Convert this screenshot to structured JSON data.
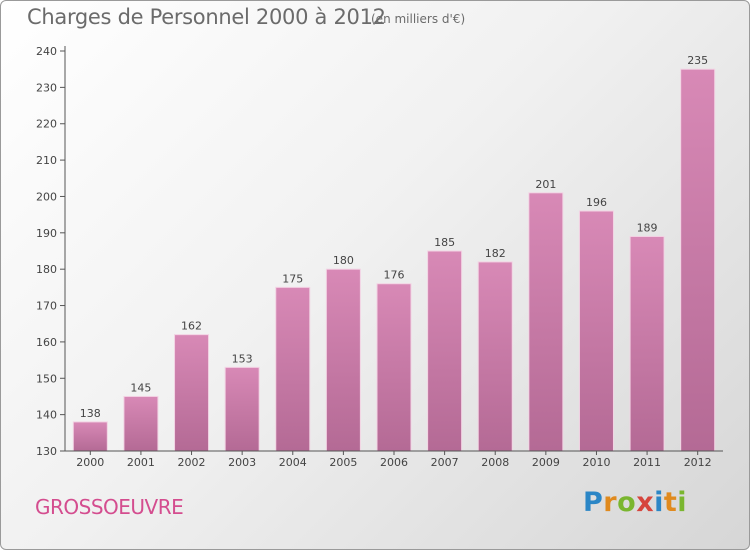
{
  "title": "Charges de Personnel 2000 à 2012",
  "subtitle": "(en milliers d'€)",
  "place": "GROSSOEUVRE",
  "logo": {
    "letters": [
      "P",
      "r",
      "o",
      "x",
      "i",
      "t",
      "i"
    ],
    "colors": [
      "#2b86c6",
      "#e08a1e",
      "#7ab62f",
      "#d6453d",
      "#2b86c6",
      "#e08a1e",
      "#7ab62f"
    ]
  },
  "colors": {
    "bar": "#d889b6",
    "bar_dark": "#b46a95",
    "axis": "#555555",
    "grid": "#e0e0e0"
  },
  "chart_data": {
    "type": "bar",
    "title": "Charges de Personnel 2000 à 2012",
    "subtitle": "(en milliers d'€)",
    "xlabel": "",
    "ylabel": "",
    "categories": [
      "2000",
      "2001",
      "2002",
      "2003",
      "2004",
      "2005",
      "2006",
      "2007",
      "2008",
      "2009",
      "2010",
      "2011",
      "2012"
    ],
    "values": [
      138,
      145,
      162,
      153,
      175,
      180,
      176,
      185,
      182,
      201,
      196,
      189,
      235
    ],
    "ylim": [
      130,
      240
    ],
    "yticks": [
      130,
      140,
      150,
      160,
      170,
      180,
      190,
      200,
      210,
      220,
      230,
      240
    ],
    "grid": false,
    "legend": "none"
  }
}
